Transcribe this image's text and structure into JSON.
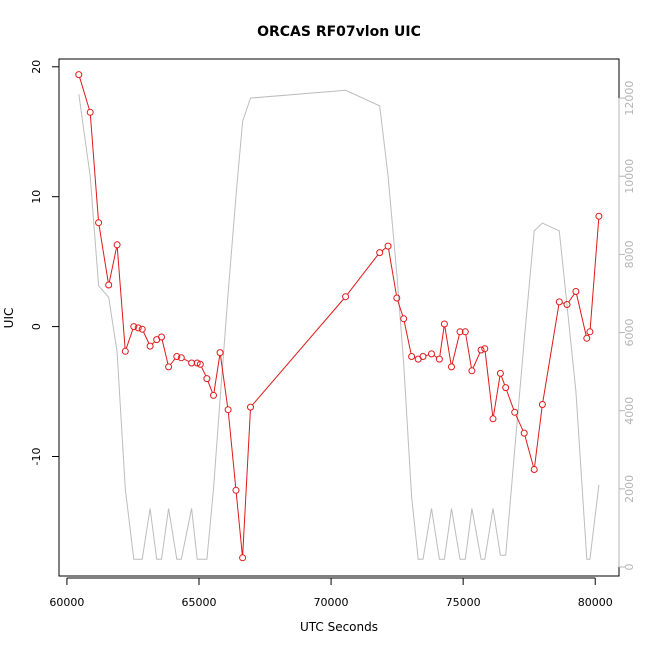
{
  "chart_data": {
    "type": "line",
    "title": "ORCAS RF07vlon UIC",
    "xlabel": "UTC Seconds",
    "ylabel": "UIC",
    "xlim": [
      59700,
      80900
    ],
    "ylim": [
      -19.2,
      20.6
    ],
    "y2lim": [
      -230,
      13000
    ],
    "x_ticks": [
      60000,
      65000,
      70000,
      75000,
      80000
    ],
    "x_tick_labels": [
      "60000",
      "65000",
      "70000",
      "75000",
      "80000"
    ],
    "y_ticks": [
      -10,
      0,
      10,
      20
    ],
    "y_tick_labels": [
      "-10",
      "0",
      "10",
      "20"
    ],
    "y2_ticks": [
      0,
      2000,
      4000,
      6000,
      8000,
      10000,
      12000
    ],
    "y2_tick_labels": [
      "0",
      "2000",
      "4000",
      "6000",
      "8000",
      "10000",
      "12000"
    ],
    "grid": false,
    "legend": "none",
    "colors": {
      "uic": "#e0191b",
      "secondary": "#bdbdbd",
      "right_axis": "#b5b5b5"
    },
    "series": [
      {
        "axis": "left",
        "style": "line+points",
        "x": [
          60450,
          60880,
          61200,
          61580,
          61900,
          62210,
          62530,
          62700,
          62850,
          63150,
          63400,
          63580,
          63850,
          64160,
          64330,
          64720,
          64930,
          65050,
          65300,
          65550,
          65800,
          66100,
          66400,
          66650,
          66950,
          70550,
          71840,
          72160,
          72490,
          72750,
          73050,
          73300,
          73480,
          73800,
          74100,
          74290,
          74560,
          74880,
          75080,
          75330,
          75680,
          75820,
          76130,
          76410,
          76610,
          76950,
          77310,
          77690,
          78000,
          78640,
          78930,
          79270,
          79680,
          79800,
          80140
        ],
        "y": [
          19.4,
          16.5,
          8.0,
          3.2,
          6.3,
          -1.9,
          0.0,
          -0.1,
          -0.2,
          -1.5,
          -1.0,
          -0.8,
          -3.1,
          -2.3,
          -2.4,
          -2.8,
          -2.8,
          -2.9,
          -4.0,
          -5.3,
          -2.0,
          -6.4,
          -12.6,
          -17.8,
          -6.2,
          2.3,
          5.7,
          6.2,
          2.2,
          0.6,
          -2.3,
          -2.5,
          -2.3,
          -2.1,
          -2.5,
          0.2,
          -3.1,
          -0.4,
          -0.4,
          -3.4,
          -1.8,
          -1.7,
          -7.1,
          -3.6,
          -4.7,
          -6.6,
          -8.2,
          -11.0,
          -6.0,
          1.9,
          1.7,
          2.7,
          -0.9,
          -0.4,
          8.5
        ]
      },
      {
        "axis": "right",
        "style": "line",
        "x": [
          60450,
          60880,
          61200,
          61580,
          61900,
          62210,
          62530,
          62700,
          62850,
          63150,
          63400,
          63580,
          63850,
          64160,
          64330,
          64720,
          64930,
          65050,
          65300,
          65550,
          65800,
          66100,
          66400,
          66650,
          66950,
          70550,
          71840,
          72160,
          72490,
          72750,
          73050,
          73300,
          73480,
          73800,
          74100,
          74290,
          74560,
          74880,
          75080,
          75330,
          75680,
          75820,
          76130,
          76410,
          76610,
          76950,
          77310,
          77690,
          78000,
          78640,
          78930,
          79270,
          79680,
          79800,
          80140
        ],
        "y": [
          12100,
          10000,
          7200,
          6900,
          5500,
          2000,
          200,
          200,
          200,
          1500,
          200,
          200,
          1500,
          200,
          200,
          1500,
          200,
          200,
          200,
          2000,
          4300,
          7000,
          9500,
          11400,
          12000,
          12200,
          11800,
          10000,
          7500,
          5200,
          1800,
          200,
          200,
          1500,
          200,
          200,
          1500,
          200,
          200,
          1500,
          200,
          200,
          1500,
          300,
          300,
          3000,
          5800,
          8600,
          8800,
          8600,
          6700,
          4500,
          200,
          200,
          2100
        ]
      }
    ]
  }
}
